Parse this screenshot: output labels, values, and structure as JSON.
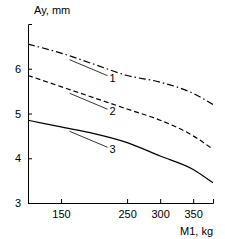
{
  "chart_data": {
    "type": "line",
    "x_label": "M1, kg",
    "y_label": "Ay, mm",
    "x": [
      100,
      150,
      200,
      250,
      300,
      350,
      380
    ],
    "series": [
      {
        "name": "1",
        "color": "#000000",
        "line_style": "dashdot",
        "values": [
          6.55,
          6.35,
          6.1,
          5.85,
          5.7,
          5.45,
          5.2
        ]
      },
      {
        "name": "2",
        "color": "#000000",
        "line_style": "dashed",
        "values": [
          5.85,
          5.6,
          5.35,
          5.1,
          4.85,
          4.5,
          4.2
        ]
      },
      {
        "name": "3",
        "color": "#000000",
        "line_style": "solid",
        "values": [
          4.85,
          4.7,
          4.55,
          4.35,
          4.05,
          3.75,
          3.45
        ]
      }
    ],
    "xlim": [
      100,
      380
    ],
    "ylim": [
      3,
      7
    ],
    "xticks": [
      150,
      250,
      300,
      350
    ],
    "yticks": [
      3,
      4,
      5,
      6
    ],
    "grid": false
  }
}
